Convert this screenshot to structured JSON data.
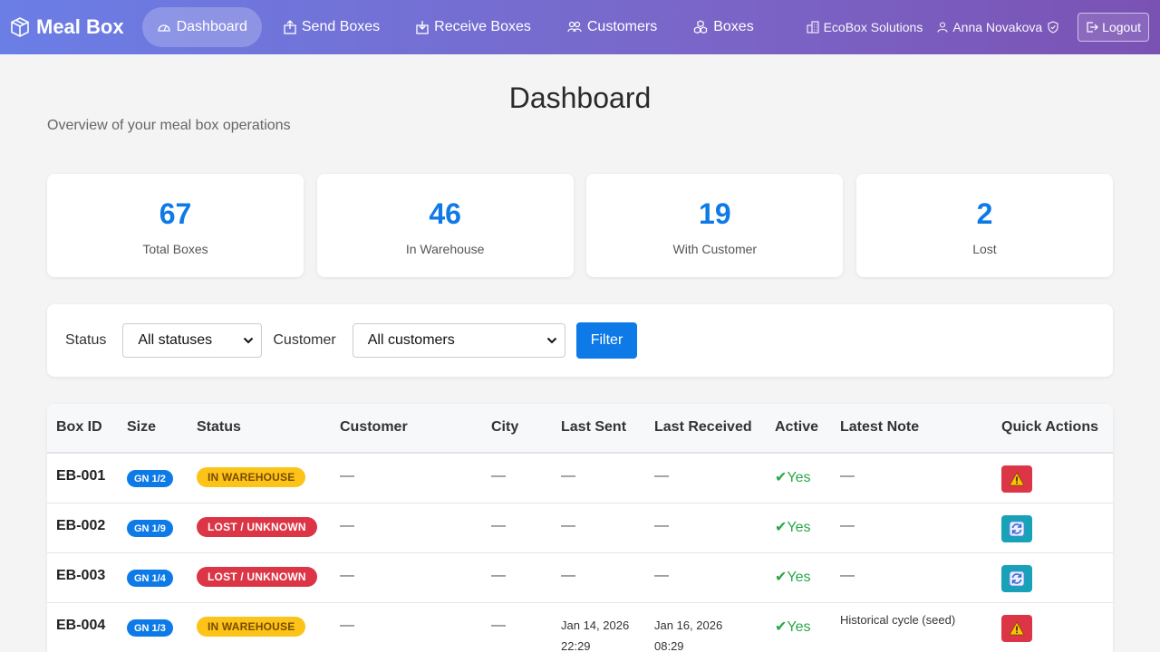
{
  "nav": {
    "brand": "Meal Box",
    "links": [
      {
        "label": "Dashboard",
        "icon": "gauge-icon",
        "active": true
      },
      {
        "label": "Send Boxes",
        "icon": "upload-icon"
      },
      {
        "label": "Receive Boxes",
        "icon": "download-icon"
      },
      {
        "label": "Customers",
        "icon": "people-icon"
      },
      {
        "label": "Boxes",
        "icon": "boxes-icon"
      }
    ],
    "org": "EcoBox Solutions",
    "user": "Anna Novakova",
    "logout": "Logout"
  },
  "header": {
    "title": "Dashboard",
    "subtitle": "Overview of your meal box operations"
  },
  "stats": [
    {
      "value": "67",
      "label": "Total Boxes"
    },
    {
      "value": "46",
      "label": "In Warehouse"
    },
    {
      "value": "19",
      "label": "With Customer"
    },
    {
      "value": "2",
      "label": "Lost"
    }
  ],
  "filter": {
    "status_label": "Status",
    "status_value": "All statuses",
    "customer_label": "Customer",
    "customer_value": "All customers",
    "button": "Filter"
  },
  "table": {
    "columns": [
      "Box ID",
      "Size",
      "Status",
      "Customer",
      "City",
      "Last Sent",
      "Last Received",
      "Active",
      "Latest Note",
      "Quick Actions"
    ],
    "rows": [
      {
        "id": "EB-001",
        "size": "GN 1/2",
        "status": "IN WAREHOUSE",
        "status_type": "warehouse",
        "customer": "—",
        "city": "—",
        "sent": "—",
        "received": "—",
        "active": "✔Yes",
        "note": "—",
        "action": "warn"
      },
      {
        "id": "EB-002",
        "size": "GN 1/9",
        "status": "LOST / UNKNOWN",
        "status_type": "lost",
        "customer": "—",
        "city": "—",
        "sent": "—",
        "received": "—",
        "active": "✔Yes",
        "note": "—",
        "action": "cycle"
      },
      {
        "id": "EB-003",
        "size": "GN 1/4",
        "status": "LOST / UNKNOWN",
        "status_type": "lost",
        "customer": "—",
        "city": "—",
        "sent": "—",
        "received": "—",
        "active": "✔Yes",
        "note": "—",
        "action": "cycle"
      },
      {
        "id": "EB-004",
        "size": "GN 1/3",
        "status": "IN WAREHOUSE",
        "status_type": "warehouse",
        "customer": "—",
        "city": "—",
        "sent_date": "Jan 14, 2026",
        "sent_time": "22:29",
        "received_date": "Jan 16, 2026",
        "received_time": "08:29",
        "active": "✔Yes",
        "note": "Historical cycle (seed)",
        "action": "warn"
      }
    ]
  }
}
